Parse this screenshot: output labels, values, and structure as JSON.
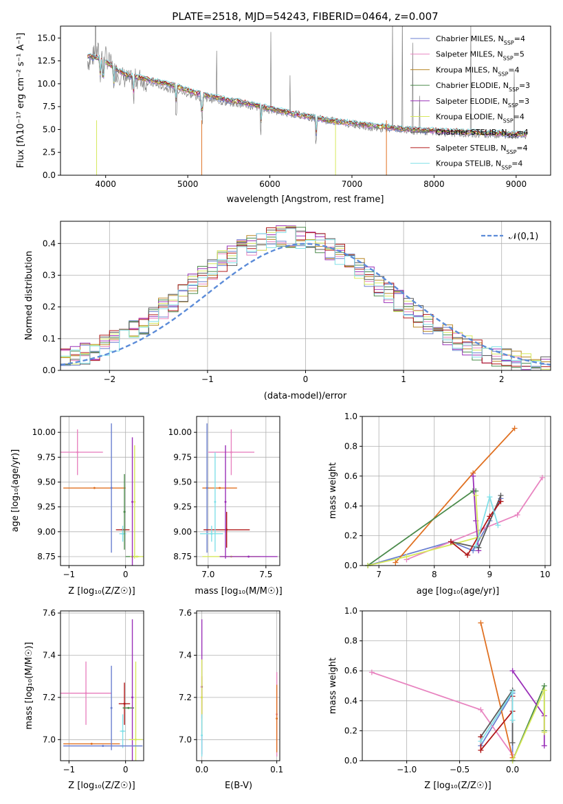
{
  "figure": {
    "bg": "#ffffff"
  },
  "chart_data": [
    {
      "id": "spectrum",
      "type": "line",
      "title": "PLATE=2518, MJD=54243, FIBERID=0464, z=0.007",
      "xlabel": "wavelength [Angstrom, rest frame]",
      "ylabel": "Flux [fλ10⁻¹⁷ erg cm⁻² s⁻¹ A⁻¹]",
      "xlim": [
        3450,
        9420
      ],
      "ylim": [
        0,
        16.3
      ],
      "xticks": [
        4000,
        5000,
        6000,
        7000,
        8000,
        9000
      ],
      "yticks": [
        0.0,
        2.5,
        5.0,
        7.5,
        10.0,
        12.5,
        15.0
      ],
      "grid": false,
      "legend_position": "top-right",
      "data_color": "#808080",
      "data_x": [
        3800,
        3900,
        4000,
        4100,
        4200,
        4300,
        4400,
        4500,
        4600,
        4700,
        4800,
        4900,
        5000,
        5100,
        5200,
        5300,
        5400,
        5500,
        5600,
        5700,
        5800,
        5900,
        6000,
        6100,
        6200,
        6300,
        6400,
        6500,
        6600,
        6700,
        6800,
        6900,
        7000,
        7100,
        7200,
        7300,
        7400,
        7500,
        7600,
        7700,
        7800,
        7900,
        8000,
        8100,
        8200,
        8300,
        8400,
        8500,
        8600,
        8700,
        8800,
        8900,
        9000,
        9100
      ],
      "data_y": [
        12.5,
        13.5,
        13.0,
        11.5,
        10.8,
        10.3,
        10.6,
        10.2,
        9.9,
        9.7,
        9.4,
        9.2,
        8.9,
        8.6,
        8.5,
        8.3,
        8.1,
        7.9,
        7.8,
        7.7,
        7.5,
        7.3,
        7.1,
        7.0,
        6.8,
        6.7,
        6.5,
        6.3,
        6.2,
        6.0,
        5.9,
        5.7,
        5.6,
        5.5,
        5.3,
        5.2,
        5.1,
        5.0,
        5.0,
        4.9,
        4.8,
        4.8,
        4.7,
        4.7,
        4.6,
        4.6,
        4.5,
        4.5,
        4.5,
        4.5,
        4.4,
        4.4,
        4.4,
        4.4
      ],
      "models": [
        {
          "name": "Chabrier MILES, N_SSP=4",
          "label": "Chabrier MILES, N",
          "sub": "SSP",
          "suffix": "=4",
          "color": "#6a7fd0"
        },
        {
          "name": "Salpeter MILES, N_SSP=5",
          "label": "Salpeter MILES, N",
          "sub": "SSP",
          "suffix": "=5",
          "color": "#e884c0"
        },
        {
          "name": "Kroupa MILES, N_SSP=4",
          "label": "Kroupa MILES, N",
          "sub": "SSP",
          "suffix": "=4",
          "color": "#b78520"
        },
        {
          "name": "Chabrier ELODIE, N_SSP=3",
          "label": "Chabrier ELODIE, N",
          "sub": "SSP",
          "suffix": "=3",
          "color": "#4a8a4a"
        },
        {
          "name": "Salpeter ELODIE, N_SSP=3",
          "label": "Salpeter ELODIE, N",
          "sub": "SSP",
          "suffix": "=3",
          "color": "#9a30b8"
        },
        {
          "name": "Kroupa ELODIE, N_SSP=4",
          "label": "Kroupa ELODIE, N",
          "sub": "SSP",
          "suffix": "=4",
          "color": "#d6e85a"
        },
        {
          "name": "Chabrier STELIB, N_SSP=4",
          "label": "Chabrier STELIB, N",
          "sub": "SSP",
          "suffix": "=4",
          "color": "#5a5a5a"
        },
        {
          "name": "Salpeter STELIB, N_SSP=4",
          "label": "Salpeter STELIB, N",
          "sub": "SSP",
          "suffix": "=4",
          "color": "#b01818"
        },
        {
          "name": "Kroupa STELIB, N_SSP=4",
          "label": "Kroupa STELIB, N",
          "sub": "SSP",
          "suffix": "=4",
          "color": "#80e0e8"
        }
      ],
      "model_y": [
        13.0,
        12.8,
        12.4,
        11.8,
        11.2,
        10.8,
        10.7,
        10.5,
        10.3,
        10.1,
        9.9,
        9.6,
        9.3,
        9.0,
        8.8,
        8.6,
        8.4,
        8.2,
        8.1,
        7.9,
        7.7,
        7.5,
        7.3,
        7.1,
        6.9,
        6.7,
        6.5,
        6.4,
        6.2,
        6.0,
        5.9,
        5.8,
        5.7,
        5.6,
        5.5,
        5.4,
        5.3,
        5.2,
        5.1,
        5.0,
        5.0,
        4.9,
        4.9,
        4.8,
        4.8,
        4.8,
        4.7,
        4.7,
        4.6,
        4.6,
        4.6,
        4.5,
        4.5,
        4.5
      ]
    },
    {
      "id": "residuals",
      "type": "line",
      "xlabel": "(data-model)/error",
      "ylabel": "Normed distribution",
      "xlim": [
        -2.5,
        2.5
      ],
      "ylim": [
        0,
        0.47
      ],
      "xticks": [
        -2,
        -1,
        0,
        1,
        2
      ],
      "yticks": [
        0.0,
        0.1,
        0.2,
        0.3,
        0.4
      ],
      "grid": true,
      "legend_position": "top-right",
      "reference": {
        "name": "𝒩(0,1)",
        "color": "#5b8bd8",
        "style": "dashed"
      }
    },
    {
      "id": "age-vs-Z",
      "type": "scatter",
      "xlabel": "Z [log₁₀(Z/Z☉)]",
      "ylabel": "age  [log₁₀(age/yr)]",
      "xlim": [
        -1.15,
        0.32
      ],
      "ylim": [
        8.66,
        10.16
      ],
      "xticks": [
        -1,
        0
      ],
      "yticks": [
        8.75,
        9.0,
        9.25,
        9.5,
        9.75,
        10.0
      ],
      "grid": true,
      "points": [
        {
          "x": -0.85,
          "y": 9.8,
          "xerr": 0.45,
          "yerr": 0.23,
          "color": "#e884c0"
        },
        {
          "x": -0.55,
          "y": 9.44,
          "xerr": 0.55,
          "yerr": 0.0,
          "color": "#e07020"
        },
        {
          "x": -0.25,
          "y": 9.44,
          "xerr": 0.0,
          "yerr": 0.65,
          "color": "#6a7fd0"
        },
        {
          "x": -0.05,
          "y": 9.02,
          "xerr": 0.12,
          "yerr": 0.0,
          "color": "#b01818"
        },
        {
          "x": -0.05,
          "y": 8.98,
          "xerr": 0.06,
          "yerr": 0.08,
          "color": "#80e0e8"
        },
        {
          "x": 0.12,
          "y": 8.75,
          "xerr": 0.12,
          "yerr": 0.0,
          "color": "#4a8a4a"
        },
        {
          "x": 0.2,
          "y": 8.75,
          "xerr": 0.12,
          "yerr": 0.0,
          "color": "#d6e85a"
        },
        {
          "x": 0.12,
          "y": 9.3,
          "xerr": 0.0,
          "yerr": 0.65,
          "color": "#9a30b8"
        },
        {
          "x": 0.16,
          "y": 9.3,
          "xerr": 0.0,
          "yerr": 0.57,
          "color": "#d6e85a"
        },
        {
          "x": -0.02,
          "y": 9.2,
          "xerr": 0.0,
          "yerr": 0.38,
          "color": "#4a8a4a"
        }
      ]
    },
    {
      "id": "age-vs-mass",
      "type": "scatter",
      "xlabel": "mass [log₁₀(M/M☉)]",
      "ylabel": "",
      "xlim": [
        6.9,
        7.62
      ],
      "ylim": [
        8.66,
        10.16
      ],
      "xticks": [
        7.0,
        7.5
      ],
      "yticks": [
        8.75,
        9.0,
        9.25,
        9.5,
        9.75,
        10.0
      ],
      "grid": true,
      "points": [
        {
          "x": 7.2,
          "y": 9.8,
          "xerr": 0.2,
          "yerr": 0.23,
          "color": "#e884c0"
        },
        {
          "x": 7.1,
          "y": 9.44,
          "xerr": 0.15,
          "yerr": 0.0,
          "color": "#e07020"
        },
        {
          "x": 6.99,
          "y": 9.44,
          "xerr": 0.0,
          "yerr": 0.65,
          "color": "#6a7fd0"
        },
        {
          "x": 7.16,
          "y": 9.02,
          "xerr": 0.2,
          "yerr": 0.18,
          "color": "#b01818"
        },
        {
          "x": 7.03,
          "y": 8.98,
          "xerr": 0.1,
          "yerr": 0.08,
          "color": "#80e0e8"
        },
        {
          "x": 7.2,
          "y": 8.75,
          "xerr": 0.25,
          "yerr": 0.0,
          "color": "#d6e85a"
        },
        {
          "x": 7.35,
          "y": 8.75,
          "xerr": 0.25,
          "yerr": 0.0,
          "color": "#9a30b8"
        },
        {
          "x": 7.15,
          "y": 9.3,
          "xerr": 0.0,
          "yerr": 0.57,
          "color": "#9a30b8"
        },
        {
          "x": 7.06,
          "y": 9.3,
          "xerr": 0.0,
          "yerr": 0.5,
          "color": "#80e0e8"
        }
      ]
    },
    {
      "id": "weight-vs-age",
      "type": "line",
      "xlabel": "age  [log₁₀(age/yr)]",
      "ylabel": "mass weight",
      "xlim": [
        6.7,
        10.1
      ],
      "ylim": [
        0,
        1
      ],
      "xticks": [
        7,
        8,
        9,
        10
      ],
      "yticks": [
        0.0,
        0.2,
        0.4,
        0.6,
        0.8,
        1.0
      ],
      "grid": true,
      "series": [
        {
          "name": "Chabrier MILES",
          "color": "#6a7fd0",
          "x": [
            6.8,
            8.3,
            8.7,
            9.0,
            9.2
          ],
          "y": [
            0.0,
            0.16,
            0.1,
            0.3,
            0.45
          ]
        },
        {
          "name": "Salpeter MILES",
          "color": "#e884c0",
          "x": [
            7.5,
            8.3,
            8.9,
            9.5,
            9.95
          ],
          "y": [
            0.04,
            0.16,
            0.25,
            0.34,
            0.59
          ]
        },
        {
          "name": "Kroupa MILES",
          "color": "#e07020",
          "x": [
            7.3,
            8.7,
            9.45
          ],
          "y": [
            0.02,
            0.62,
            0.92
          ]
        },
        {
          "name": "Chabrier ELODIE",
          "color": "#4a8a4a",
          "x": [
            6.8,
            8.7,
            8.75
          ],
          "y": [
            0.0,
            0.5,
            0.5
          ]
        },
        {
          "name": "Salpeter ELODIE",
          "color": "#9a30b8",
          "x": [
            8.7,
            8.75,
            8.8
          ],
          "y": [
            0.6,
            0.3,
            0.1
          ]
        },
        {
          "name": "Kroupa ELODIE",
          "color": "#d6e85a",
          "x": [
            6.8,
            7.5,
            8.8,
            8.75
          ],
          "y": [
            0.0,
            0.06,
            0.19,
            0.47
          ]
        },
        {
          "name": "Chabrier STELIB",
          "color": "#5a5a5a",
          "x": [
            8.3,
            8.8,
            9.2
          ],
          "y": [
            0.16,
            0.12,
            0.47
          ]
        },
        {
          "name": "Salpeter STELIB",
          "color": "#b01818",
          "x": [
            8.3,
            8.6,
            9.0,
            9.2
          ],
          "y": [
            0.16,
            0.07,
            0.33,
            0.43
          ]
        },
        {
          "name": "Kroupa STELIB",
          "color": "#80e0e8",
          "x": [
            8.75,
            9.0,
            9.15
          ],
          "y": [
            0.13,
            0.46,
            0.27
          ]
        }
      ]
    },
    {
      "id": "mass-vs-Z",
      "type": "scatter",
      "xlabel": "Z [log₁₀(Z/Z☉)]",
      "ylabel": "mass [log₁₀(M/M☉)]",
      "xlim": [
        -1.15,
        0.32
      ],
      "ylim": [
        6.9,
        7.61
      ],
      "xticks": [
        -1,
        0
      ],
      "yticks": [
        7.0,
        7.2,
        7.4,
        7.6
      ],
      "grid": true,
      "points": [
        {
          "x": -0.7,
          "y": 7.22,
          "xerr": 0.45,
          "yerr": 0.15,
          "color": "#e884c0"
        },
        {
          "x": -0.6,
          "y": 6.98,
          "xerr": 0.5,
          "yerr": 0.0,
          "color": "#e07020"
        },
        {
          "x": -0.25,
          "y": 7.15,
          "xerr": 0.0,
          "yerr": 0.2,
          "color": "#6a7fd0"
        },
        {
          "x": -0.02,
          "y": 7.17,
          "xerr": 0.1,
          "yerr": 0.1,
          "color": "#b01818"
        },
        {
          "x": 0.05,
          "y": 7.15,
          "xerr": 0.1,
          "yerr": 0.0,
          "color": "#4a8a4a"
        },
        {
          "x": 0.12,
          "y": 7.2,
          "xerr": 0.0,
          "yerr": 0.37,
          "color": "#9a30b8"
        },
        {
          "x": 0.18,
          "y": 7.0,
          "xerr": 0.12,
          "yerr": 0.37,
          "color": "#d6e85a"
        },
        {
          "x": -0.05,
          "y": 7.04,
          "xerr": 0.05,
          "yerr": 0.08,
          "color": "#80e0e8"
        },
        {
          "x": -0.4,
          "y": 6.97,
          "xerr": 0.7,
          "yerr": 0.0,
          "color": "#6a7fd0"
        }
      ]
    },
    {
      "id": "mass-vs-EBV",
      "type": "scatter",
      "xlabel": "E(B-V)",
      "ylabel": "",
      "xlim": [
        -0.007,
        0.104
      ],
      "ylim": [
        6.9,
        7.61
      ],
      "xticks": [
        0.0,
        0.1
      ],
      "yticks": [
        7.0,
        7.2,
        7.4,
        7.6
      ],
      "grid": true,
      "points": [
        {
          "x": 0.0,
          "y": 7.25,
          "xerr": 0.0,
          "yerr": 0.32,
          "color": "#9a30b8"
        },
        {
          "x": 0.0,
          "y": 7.2,
          "xerr": 0.0,
          "yerr": 0.1,
          "color": "#b01818"
        },
        {
          "x": 0.0,
          "y": 7.2,
          "xerr": 0.0,
          "yerr": 0.18,
          "color": "#d6e85a"
        },
        {
          "x": 0.0,
          "y": 7.02,
          "xerr": 0.0,
          "yerr": 0.1,
          "color": "#80e0e8"
        },
        {
          "x": 0.1,
          "y": 7.12,
          "xerr": 0.0,
          "yerr": 0.2,
          "color": "#e884c0"
        },
        {
          "x": 0.1,
          "y": 7.1,
          "xerr": 0.0,
          "yerr": 0.16,
          "color": "#e07020"
        }
      ]
    },
    {
      "id": "weight-vs-Z",
      "type": "line",
      "xlabel": "Z [log₁₀(Z/Z☉)]",
      "ylabel": "mass weight",
      "xlim": [
        -1.42,
        0.36
      ],
      "ylim": [
        0,
        1
      ],
      "xticks": [
        -1.0,
        -0.5,
        0.0
      ],
      "yticks": [
        0.0,
        0.2,
        0.4,
        0.6,
        0.8,
        1.0
      ],
      "grid": true,
      "series": [
        {
          "name": "Chabrier MILES",
          "color": "#6a7fd0",
          "x": [
            -0.3,
            0.0,
            0.0
          ],
          "y": [
            0.1,
            0.45,
            0.0
          ]
        },
        {
          "name": "Salpeter MILES",
          "color": "#e884c0",
          "x": [
            -1.33,
            -0.3,
            0.0
          ],
          "y": [
            0.59,
            0.34,
            0.04
          ]
        },
        {
          "name": "Kroupa MILES",
          "color": "#e07020",
          "x": [
            -0.3,
            0.0
          ],
          "y": [
            0.92,
            0.02
          ]
        },
        {
          "name": "Chabrier ELODIE",
          "color": "#4a8a4a",
          "x": [
            0.0,
            0.3,
            0.3
          ],
          "y": [
            0.0,
            0.5,
            0.2
          ]
        },
        {
          "name": "Salpeter ELODIE",
          "color": "#9a30b8",
          "x": [
            0.0,
            0.3,
            0.3
          ],
          "y": [
            0.6,
            0.3,
            0.1
          ]
        },
        {
          "name": "Kroupa ELODIE",
          "color": "#d6e85a",
          "x": [
            0.0,
            0.3,
            0.3
          ],
          "y": [
            0.0,
            0.47,
            0.19
          ]
        },
        {
          "name": "Chabrier STELIB",
          "color": "#5a5a5a",
          "x": [
            -0.3,
            0.0,
            0.0
          ],
          "y": [
            0.16,
            0.47,
            0.12
          ]
        },
        {
          "name": "Salpeter STELIB",
          "color": "#b01818",
          "x": [
            -0.3,
            -0.3,
            0.0,
            0.0
          ],
          "y": [
            0.16,
            0.07,
            0.33,
            0.43
          ]
        },
        {
          "name": "Kroupa STELIB",
          "color": "#80e0e8",
          "x": [
            -0.3,
            0.0,
            0.0
          ],
          "y": [
            0.13,
            0.46,
            0.27
          ]
        }
      ]
    }
  ]
}
